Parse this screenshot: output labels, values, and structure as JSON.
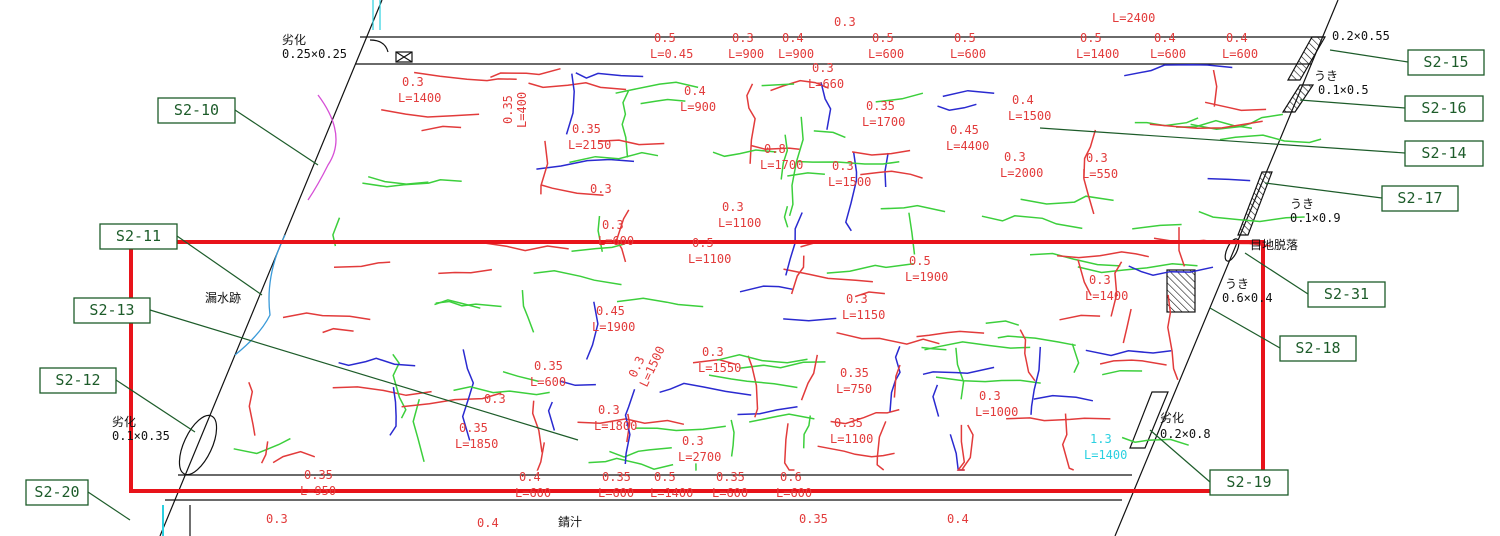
{
  "callouts": [
    "S2-15",
    "S2-16",
    "S2-14",
    "S2-17",
    "S2-10",
    "S2-11",
    "S2-13",
    "S2-31",
    "S2-18",
    "S2-12",
    "S2-19",
    "S2-20"
  ],
  "notes": [
    "劣化",
    "0.25×0.25",
    "0.2×0.55",
    "うき",
    "0.1×0.5",
    "うき",
    "0.1×0.9",
    "目地脱落",
    "うき",
    "0.6×0.4",
    "劣化",
    "0.2×0.8",
    "劣化",
    "0.1×0.35",
    "漏水跡",
    "錆汁"
  ],
  "annotations": [
    {
      "w": "0.3"
    },
    {
      "w": "0.5",
      "l": "L=0.45"
    },
    {
      "w": "0.3",
      "l": "L=900"
    },
    {
      "w": "0.4",
      "l": "L=900"
    },
    {
      "w": "0.5",
      "l": "L=600"
    },
    {
      "w": "0.5",
      "l": "L=600"
    },
    {
      "w": "0.5",
      "l": "L=1400"
    },
    {
      "w": "0.4",
      "l": "L=600"
    },
    {
      "w": "0.4",
      "l": "L=600"
    },
    {
      "w": "0.3",
      "l": "L=660"
    },
    {
      "w": "0.3",
      "l": "L=1400"
    },
    {
      "w": "0.4",
      "l": "L=900"
    },
    {
      "w": "0.35",
      "l": "L=1700"
    },
    {
      "w": "0.4",
      "l": "L=1500"
    },
    {
      "w": "0.35",
      "l": "L=2150"
    },
    {
      "w": "0.45",
      "l": "L=4400"
    },
    {
      "w": "0.8",
      "l": "L=1700"
    },
    {
      "w": "0.3",
      "l": "L=1500"
    },
    {
      "w": "0.3",
      "l": "L=2000"
    },
    {
      "w": "0.3",
      "l": "L=550"
    },
    {
      "w": "0.3"
    },
    {
      "w": "0.3",
      "l": "L=1100"
    },
    {
      "w": "0.3",
      "l": "L=600"
    },
    {
      "w": "0.5",
      "l": "L=1100"
    },
    {
      "w": "0.5",
      "l": "L=1900"
    },
    {
      "w": "0.3",
      "l": "L=1400"
    },
    {
      "w": "0.3",
      "l": "L=1150"
    },
    {
      "w": "0.45",
      "l": "L=1900"
    },
    {
      "w": "0.3",
      "l": "L=1550"
    },
    {
      "w": "0.35",
      "l": "L=600"
    },
    {
      "w": "0.35",
      "l": "L=750"
    },
    {
      "w": "0.3",
      "l": "L=1000"
    },
    {
      "w": "0.3"
    },
    {
      "w": "0.3",
      "l": "L=1800"
    },
    {
      "w": "0.35",
      "l": "L=1100"
    },
    {
      "w": "0.35",
      "l": "L=1850"
    },
    {
      "w": "0.3",
      "l": "L=2700"
    },
    {
      "w": "0.35",
      "l": "L=950"
    },
    {
      "w": "0.4",
      "l": "L=600"
    },
    {
      "w": "0.35",
      "l": "L=600"
    },
    {
      "w": "0.5",
      "l": "L=1400"
    },
    {
      "w": "0.35",
      "l": "L=600"
    },
    {
      "w": "0.6",
      "l": "L=600"
    },
    {
      "w": "0.3"
    },
    {
      "w": "0.4"
    },
    {
      "w": "0.35"
    },
    {
      "w": "0.4"
    },
    {
      "l": "L=2400"
    }
  ],
  "rotated": [
    {
      "w": "0.35",
      "l": "L=400"
    },
    {
      "w": "0.3",
      "l": "L=1500"
    }
  ],
  "cyan": {
    "w": "1.3",
    "l": "L=1400"
  }
}
